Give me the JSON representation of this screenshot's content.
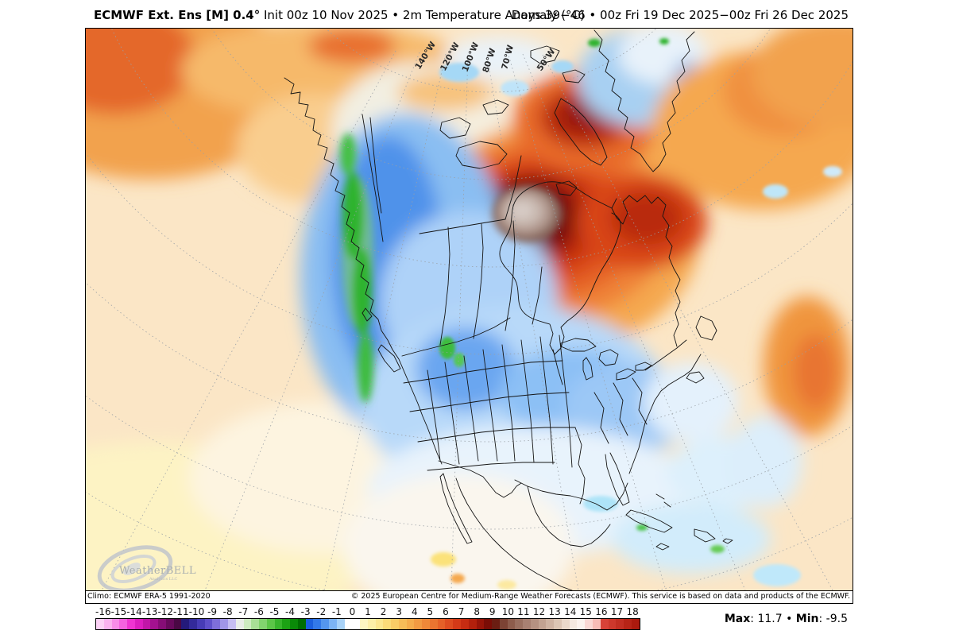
{
  "header": {
    "title_bold": "ECMWF Ext. Ens [M] 0.4°",
    "title_rest": " Init 00z 10 Nov 2025 • 2m Temperature Anomaly (°C)",
    "title_right": "Days 39−46 • 00z Fri 19 Dec 2025−00z Fri 26 Dec 2025"
  },
  "map": {
    "graticule_labels": [
      "140°W",
      "120°W",
      "100°W",
      "80°W",
      "70°W",
      "50°W"
    ],
    "logo": {
      "name": "WeatherBELL",
      "sub": "Analytics LLC"
    },
    "footer": {
      "climo": "Climo: ECMWF ERA-5 1991-2020",
      "copyright": "© 2025 European Centre for Medium-Range Weather Forecasts (ECMWF). This service is based on data and products of the ECMWF."
    }
  },
  "colorbar": {
    "unit": "°C",
    "ticks": [
      "-16",
      "-15",
      "-14",
      "-13",
      "-12",
      "-11",
      "-10",
      "-9",
      "-8",
      "-7",
      "-6",
      "-5",
      "-4",
      "-3",
      "-2",
      "-1",
      "0",
      "1",
      "2",
      "3",
      "4",
      "5",
      "6",
      "7",
      "8",
      "9",
      "10",
      "11",
      "12",
      "13",
      "14",
      "15",
      "16",
      "17",
      "18"
    ],
    "range": [
      -16.5,
      18.5
    ],
    "cell_colors": [
      "#fcd2f6",
      "#fab2ef",
      "#f88ce8",
      "#f562e0",
      "#ef34d2",
      "#dc1ec0",
      "#c116a8",
      "#a31190",
      "#860d76",
      "#68095c",
      "#4a0844",
      "#241a7a",
      "#332a9a",
      "#473cb6",
      "#5f50ca",
      "#7e6eda",
      "#a196e8",
      "#c6bef2",
      "#e9eee8",
      "#cdecc0",
      "#a8e096",
      "#82d46e",
      "#5cc648",
      "#38b52c",
      "#1ca214",
      "#0a8a08",
      "#006e00",
      "#1b5fdd",
      "#3379e8",
      "#5496ee",
      "#7cb4f4",
      "#a8d2f8",
      "#ffffff",
      "#ffffff",
      "#fdf6c2",
      "#fcefa8",
      "#fbe690",
      "#fada78",
      "#f9cc66",
      "#f7bc58",
      "#f5ac4c",
      "#f29a42",
      "#ef8838",
      "#ea7430",
      "#e56028",
      "#de4c20",
      "#d43a18",
      "#c62c12",
      "#b2200c",
      "#971408",
      "#7a0d06",
      "#6b1d12",
      "#7c4334",
      "#8d5c4c",
      "#9a6f60",
      "#a88072",
      "#b59181",
      "#c2a291",
      "#cfb3a2",
      "#dcc5b4",
      "#ead8ca",
      "#f5e9e0",
      "#fcf3ee",
      "#fad8d4",
      "#f7bcb6",
      "#d84238",
      "#cd382c",
      "#c22e22",
      "#b72417",
      "#ac1a0e"
    ]
  },
  "stats": {
    "max_label": "Max",
    "max_value": "11.7",
    "min_label": "Min",
    "min_value": "-9.5",
    "sep": " • "
  }
}
